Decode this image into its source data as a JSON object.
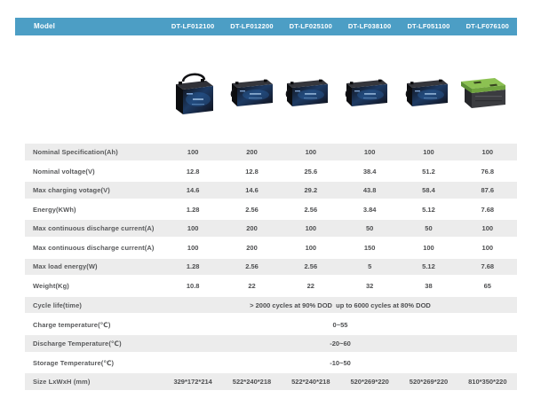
{
  "colors": {
    "header_bg": "#4c9ec5",
    "row_alt": "#ececec",
    "header_text": "#ffffff",
    "body_text": "#57585a"
  },
  "header": {
    "model_label": "Model",
    "models": [
      "DT-LF012100",
      "DT-LF012200",
      "DT-LF025100",
      "DT-LF038100",
      "DT-LF051100",
      "DT-LF076100"
    ]
  },
  "products": [
    {
      "model": "DT-LF012100",
      "image": "battery-small-with-handle-icon"
    },
    {
      "model": "DT-LF012200",
      "image": "battery-long-icon"
    },
    {
      "model": "DT-LF025100",
      "image": "battery-long-icon"
    },
    {
      "model": "DT-LF038100",
      "image": "battery-long-icon"
    },
    {
      "model": "DT-LF051100",
      "image": "battery-long-icon"
    },
    {
      "model": "DT-LF076100",
      "image": "battery-green-lid-icon"
    }
  ],
  "table": {
    "rows": [
      {
        "label": "Nominal Specification(Ah)",
        "values": [
          "100",
          "200",
          "100",
          "100",
          "100",
          "100"
        ]
      },
      {
        "label": "Nominal voltage(V)",
        "values": [
          "12.8",
          "12.8",
          "25.6",
          "38.4",
          "51.2",
          "76.8"
        ]
      },
      {
        "label": "Max charging votage(V)",
        "values": [
          "14.6",
          "14.6",
          "29.2",
          "43.8",
          "58.4",
          "87.6"
        ]
      },
      {
        "label": "Energy(KWh)",
        "values": [
          "1.28",
          "2.56",
          "2.56",
          "3.84",
          "5.12",
          "7.68"
        ]
      },
      {
        "label": "Max continuous discharge current(A)",
        "values": [
          "100",
          "200",
          "100",
          "50",
          "50",
          "100"
        ]
      },
      {
        "label": "Max continuous discharge current(A)",
        "values": [
          "100",
          "200",
          "100",
          "150",
          "100",
          "100"
        ]
      },
      {
        "label": "Max load energy(W)",
        "values": [
          "1.28",
          "2.56",
          "2.56",
          "5",
          "5.12",
          "7.68"
        ]
      },
      {
        "label": "Weight(Kg)",
        "values": [
          "10.8",
          "22",
          "22",
          "32",
          "38",
          "65"
        ]
      },
      {
        "label": "Cycle life(time)",
        "span": "> 2000 cycles at 90% DOD  up to 6000 cycles at 80% DOD"
      },
      {
        "label": "Charge temperature(℃)",
        "span": "0~55"
      },
      {
        "label": "Discharge Temperature(℃)",
        "span": "-20~60"
      },
      {
        "label": "Storage Temperature(℃)",
        "span": "-10~50"
      },
      {
        "label": "Size LxWxH (mm)",
        "values": [
          "329*172*214",
          "522*240*218",
          "522*240*218",
          "520*269*220",
          "520*269*220",
          "810*350*220"
        ]
      }
    ]
  }
}
